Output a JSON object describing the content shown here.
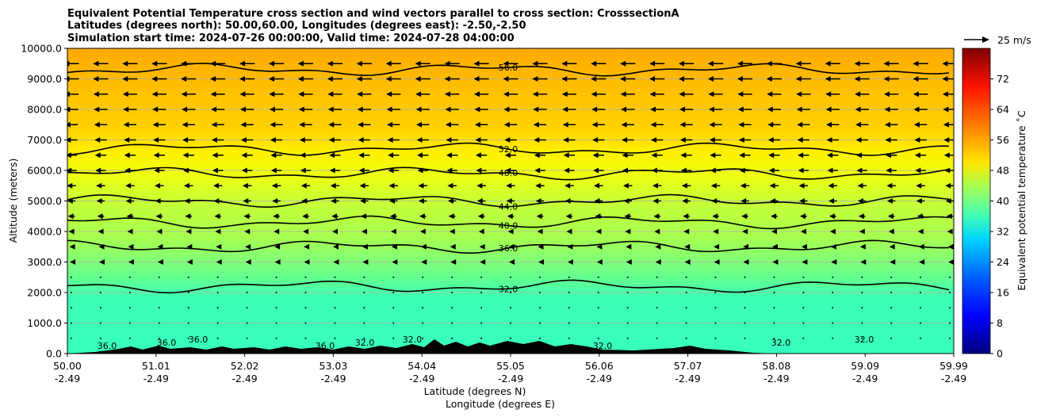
{
  "chart_data": {
    "type": "heatmap",
    "title_lines": [
      "Equivalent Potential Temperature cross section and wind vectors parallel to cross section: CrosssectionA",
      "Latitudes (degrees north): 50.00,60.00, Longitudes (degrees east): -2.50,-2.50",
      "Simulation start time: 2024-07-26 00:00:00, Valid time: 2024-07-28 04:00:00"
    ],
    "ylabel": "Altitude (meters)",
    "xlabel_lines": [
      "Latitude (degrees N)",
      "Longitude (degrees E)"
    ],
    "ylim": [
      0,
      10000
    ],
    "xlim": [
      50.0,
      59.99
    ],
    "y_ticks": [
      "0.0",
      "1000.0",
      "2000.0",
      "3000.0",
      "4000.0",
      "5000.0",
      "6000.0",
      "7000.0",
      "8000.0",
      "9000.0",
      "10000.0"
    ],
    "x_ticks": [
      {
        "lat": "50.00",
        "lon": "-2.49"
      },
      {
        "lat": "51.01",
        "lon": "-2.49"
      },
      {
        "lat": "52.02",
        "lon": "-2.49"
      },
      {
        "lat": "53.03",
        "lon": "-2.49"
      },
      {
        "lat": "54.04",
        "lon": "-2.49"
      },
      {
        "lat": "55.05",
        "lon": "-2.49"
      },
      {
        "lat": "56.06",
        "lon": "-2.49"
      },
      {
        "lat": "57.07",
        "lon": "-2.49"
      },
      {
        "lat": "58.08",
        "lon": "-2.49"
      },
      {
        "lat": "59.09",
        "lon": "-2.49"
      },
      {
        "lat": "59.99",
        "lon": "-2.49"
      }
    ],
    "grid": true,
    "colorbar": {
      "label": "Equivalent potential temperature ˚C",
      "range": [
        0,
        80
      ],
      "ticks": [
        "0",
        "8",
        "16",
        "24",
        "32",
        "40",
        "48",
        "56",
        "64",
        "72"
      ],
      "colormap": "jet"
    },
    "quiver_key": {
      "label": "25 m/s",
      "placement": "top-right"
    },
    "field_levels": [
      {
        "altitude": 0,
        "theta_e": 35
      },
      {
        "altitude": 1000,
        "theta_e": 35
      },
      {
        "altitude": 2000,
        "theta_e": 35
      },
      {
        "altitude": 3000,
        "theta_e": 38
      },
      {
        "altitude": 4000,
        "theta_e": 40
      },
      {
        "altitude": 5000,
        "theta_e": 45
      },
      {
        "altitude": 6000,
        "theta_e": 48
      },
      {
        "altitude": 7000,
        "theta_e": 51
      },
      {
        "altitude": 8000,
        "theta_e": 52
      },
      {
        "altitude": 9000,
        "theta_e": 54
      },
      {
        "altitude": 10000,
        "theta_e": 56
      }
    ],
    "contours": [
      {
        "level": "56.0",
        "label": "56.0",
        "altitude_m": 9300
      },
      {
        "level": "52.0",
        "label": "52.0",
        "altitude_m": 6700
      },
      {
        "level": "48.0",
        "label": "48.0",
        "altitude_m": 5900
      },
      {
        "level": "44.0",
        "label": "44.0",
        "altitude_m": 5000
      },
      {
        "level": "40.0",
        "label": "40.0",
        "altitude_m": 4300
      },
      {
        "level": "36.0",
        "label": "36.0",
        "altitude_m": 3500
      },
      {
        "level": "32.0",
        "label": "32.0",
        "altitude_m": 2200
      }
    ],
    "near_surface_labels": [
      "36.0",
      "36.0",
      "36.0",
      "36.0",
      "32.0",
      "32.0",
      "32.0",
      "32.0",
      "32.0"
    ],
    "wind_rows": [
      {
        "altitude": 9500,
        "u": -20
      },
      {
        "altitude": 9000,
        "u": -20
      },
      {
        "altitude": 8500,
        "u": -19
      },
      {
        "altitude": 8000,
        "u": -18
      },
      {
        "altitude": 7500,
        "u": -17
      },
      {
        "altitude": 7000,
        "u": -16
      },
      {
        "altitude": 6500,
        "u": -15
      },
      {
        "altitude": 6000,
        "u": -14
      },
      {
        "altitude": 5500,
        "u": -12
      },
      {
        "altitude": 5000,
        "u": -11
      },
      {
        "altitude": 4500,
        "u": -9
      },
      {
        "altitude": 4000,
        "u": -7
      },
      {
        "altitude": 3500,
        "u": -5
      },
      {
        "altitude": 3000,
        "u": -4
      },
      {
        "altitude": 2500,
        "u": -3
      },
      {
        "altitude": 2000,
        "u": -2
      },
      {
        "altitude": 1500,
        "u": -1
      },
      {
        "altitude": 1000,
        "u": -1
      },
      {
        "altitude": 500,
        "u": -1
      }
    ]
  }
}
